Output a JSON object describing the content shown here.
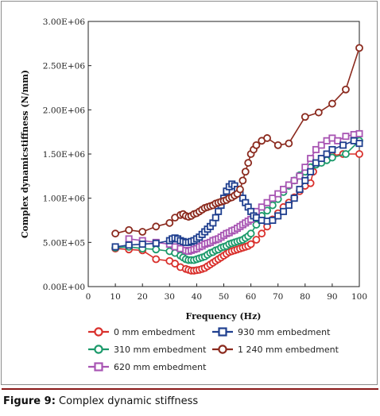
{
  "caption": {
    "label": "Figure 9:",
    "text": " Complex dynamic stiffness"
  },
  "chart_data": {
    "type": "line",
    "title": "",
    "xlabel": "Frequency (Hz)",
    "ylabel": "Complex dynamicstiffness (N/mm)",
    "xlim": [
      0,
      100
    ],
    "ylim": [
      0,
      3000000
    ],
    "x_ticks": [
      "0",
      "10",
      "20",
      "30",
      "40",
      "50",
      "60",
      "70",
      "80",
      "90",
      "100"
    ],
    "x_tick_values": [
      0,
      10,
      20,
      30,
      40,
      50,
      60,
      70,
      80,
      90,
      100
    ],
    "y_ticks": [
      "0.00E+00",
      "5.00E+05",
      "1.00E+06",
      "1.50E+06",
      "2.00E+06",
      "2.50E+06",
      "3.00E+06"
    ],
    "y_tick_values": [
      0,
      500000,
      1000000,
      1500000,
      2000000,
      2500000,
      3000000
    ],
    "grid": false,
    "legend_position": "bottom",
    "series": [
      {
        "name": "0 mm embedment",
        "color": "#d9302c",
        "marker": "circle",
        "x": [
          10,
          15,
          20,
          25,
          30,
          32,
          34,
          36,
          37,
          38,
          39,
          40,
          41,
          42,
          43,
          44,
          45,
          46,
          47,
          48,
          49,
          50,
          51,
          52,
          53,
          54,
          55,
          56,
          57,
          58,
          59,
          60,
          62,
          64,
          66,
          68,
          70,
          72,
          74,
          76,
          78,
          80,
          82,
          83,
          84,
          86,
          88,
          90,
          94,
          100
        ],
        "y": [
          430000,
          420000,
          410000,
          310000,
          290000,
          260000,
          220000,
          200000,
          190000,
          180000,
          180000,
          185000,
          190000,
          200000,
          210000,
          230000,
          250000,
          270000,
          290000,
          310000,
          330000,
          350000,
          370000,
          390000,
          400000,
          410000,
          420000,
          430000,
          440000,
          450000,
          460000,
          480000,
          530000,
          600000,
          680000,
          760000,
          830000,
          900000,
          950000,
          1010000,
          1080000,
          1140000,
          1170000,
          1300000,
          1390000,
          1420000,
          1450000,
          1480000,
          1500000,
          1500000
        ]
      },
      {
        "name": "310 mm embedment",
        "color": "#1c9a6b",
        "marker": "circle",
        "x": [
          10,
          15,
          20,
          25,
          30,
          32,
          34,
          35,
          36,
          37,
          38,
          39,
          40,
          41,
          42,
          43,
          44,
          45,
          46,
          47,
          48,
          49,
          50,
          51,
          52,
          53,
          54,
          55,
          56,
          57,
          58,
          59,
          60,
          62,
          64,
          66,
          68,
          70,
          72,
          74,
          76,
          78,
          80,
          82,
          84,
          86,
          88,
          90,
          95,
          100
        ],
        "y": [
          440000,
          450000,
          430000,
          420000,
          400000,
          380000,
          350000,
          330000,
          310000,
          300000,
          300000,
          300000,
          310000,
          320000,
          330000,
          340000,
          360000,
          380000,
          390000,
          410000,
          420000,
          440000,
          450000,
          460000,
          480000,
          490000,
          500000,
          510000,
          520000,
          530000,
          550000,
          570000,
          600000,
          700000,
          800000,
          860000,
          920000,
          990000,
          1070000,
          1140000,
          1200000,
          1260000,
          1300000,
          1350000,
          1380000,
          1400000,
          1430000,
          1460000,
          1500000,
          1650000
        ]
      },
      {
        "name": "620 mm embedment",
        "color": "#a855b3",
        "marker": "square",
        "x": [
          15,
          20,
          25,
          30,
          32,
          34,
          36,
          37,
          38,
          39,
          40,
          41,
          42,
          43,
          44,
          45,
          46,
          47,
          48,
          49,
          50,
          51,
          52,
          53,
          54,
          55,
          56,
          57,
          58,
          59,
          60,
          62,
          64,
          66,
          68,
          70,
          72,
          74,
          76,
          78,
          80,
          82,
          84,
          86,
          88,
          90,
          92,
          95,
          98,
          100
        ],
        "y": [
          540000,
          520000,
          500000,
          480000,
          450000,
          430000,
          410000,
          400000,
          410000,
          420000,
          430000,
          450000,
          460000,
          480000,
          490000,
          500000,
          520000,
          530000,
          540000,
          560000,
          580000,
          600000,
          610000,
          630000,
          640000,
          660000,
          680000,
          700000,
          720000,
          740000,
          760000,
          850000,
          900000,
          950000,
          1000000,
          1050000,
          1100000,
          1150000,
          1200000,
          1250000,
          1350000,
          1450000,
          1550000,
          1600000,
          1650000,
          1680000,
          1650000,
          1700000,
          1720000,
          1730000
        ]
      },
      {
        "name": "930 mm embedment",
        "color": "#1f3f8f",
        "marker": "square",
        "x": [
          10,
          15,
          20,
          25,
          30,
          31,
          32,
          33,
          34,
          35,
          36,
          37,
          38,
          39,
          40,
          41,
          42,
          43,
          44,
          45,
          46,
          47,
          48,
          49,
          50,
          51,
          52,
          53,
          54,
          55,
          56,
          57,
          58,
          59,
          60,
          61,
          62,
          64,
          66,
          68,
          70,
          72,
          74,
          76,
          78,
          80,
          82,
          84,
          86,
          88,
          90,
          94,
          98,
          100
        ],
        "y": [
          450000,
          470000,
          480000,
          490000,
          520000,
          540000,
          550000,
          540000,
          520000,
          510000,
          500000,
          500000,
          510000,
          520000,
          540000,
          560000,
          590000,
          620000,
          650000,
          680000,
          720000,
          780000,
          850000,
          920000,
          1000000,
          1080000,
          1130000,
          1160000,
          1140000,
          1100000,
          1050000,
          1000000,
          950000,
          900000,
          850000,
          800000,
          780000,
          750000,
          740000,
          750000,
          800000,
          850000,
          920000,
          1000000,
          1100000,
          1200000,
          1300000,
          1400000,
          1450000,
          1500000,
          1550000,
          1600000,
          1650000,
          1620000
        ]
      },
      {
        "name": "1 240 mm embedment",
        "color": "#8b2a1e",
        "marker": "circle",
        "x": [
          10,
          15,
          20,
          25,
          30,
          32,
          34,
          35,
          36,
          37,
          38,
          39,
          40,
          41,
          42,
          43,
          44,
          45,
          46,
          47,
          48,
          49,
          50,
          51,
          52,
          53,
          54,
          55,
          56,
          57,
          58,
          59,
          60,
          61,
          62,
          64,
          66,
          70,
          74,
          80,
          85,
          90,
          95,
          100
        ],
        "y": [
          600000,
          640000,
          620000,
          680000,
          720000,
          780000,
          810000,
          820000,
          800000,
          790000,
          800000,
          820000,
          830000,
          850000,
          870000,
          890000,
          900000,
          910000,
          920000,
          940000,
          950000,
          960000,
          970000,
          980000,
          1000000,
          1010000,
          1030000,
          1050000,
          1100000,
          1200000,
          1300000,
          1400000,
          1500000,
          1550000,
          1600000,
          1650000,
          1680000,
          1600000,
          1620000,
          1920000,
          1970000,
          2070000,
          2230000,
          2700000
        ]
      }
    ]
  }
}
